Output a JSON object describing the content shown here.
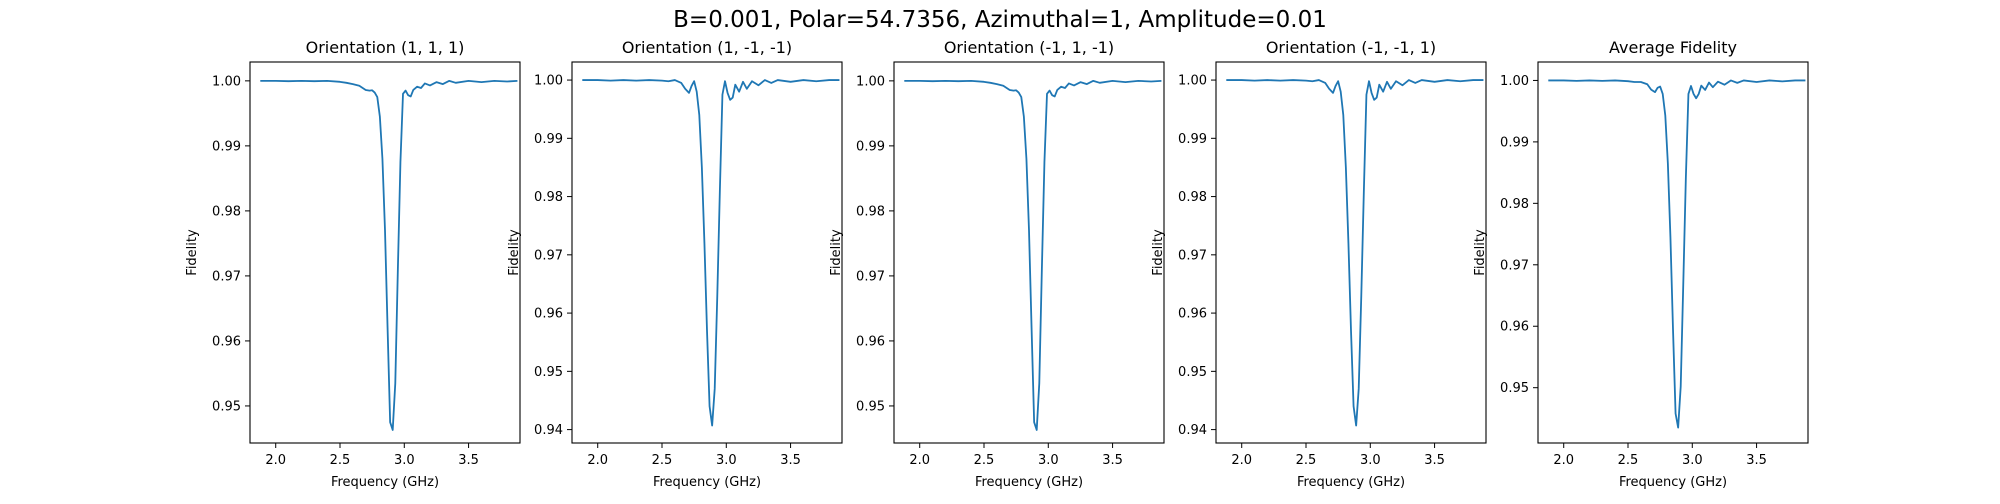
{
  "figure_title": "B=0.001, Polar=54.7356, Azimuthal=1, Amplitude=0.01",
  "line_color": "#1f77b4",
  "chart_data": [
    {
      "type": "line",
      "title": "Orientation (1, 1, 1)",
      "xlabel": "Frequency (GHz)",
      "ylabel": "Fidelity",
      "xlim": [
        1.8,
        3.9
      ],
      "ylim": [
        0.9443,
        1.0029
      ],
      "xticks": [
        2.0,
        2.5,
        3.0,
        3.5
      ],
      "xtick_labels": [
        "2.0",
        "2.5",
        "3.0",
        "3.5"
      ],
      "yticks": [
        0.95,
        0.96,
        0.97,
        0.98,
        0.99,
        1.0
      ],
      "ytick_labels": [
        "0.95",
        "0.96",
        "0.97",
        "0.98",
        "0.99",
        "1.00"
      ],
      "grid": false,
      "x": [
        1.88,
        2.0,
        2.1,
        2.2,
        2.3,
        2.4,
        2.5,
        2.55,
        2.6,
        2.65,
        2.7,
        2.73,
        2.75,
        2.77,
        2.79,
        2.81,
        2.83,
        2.85,
        2.87,
        2.89,
        2.91,
        2.93,
        2.95,
        2.97,
        2.99,
        3.01,
        3.03,
        3.05,
        3.07,
        3.1,
        3.13,
        3.16,
        3.2,
        3.25,
        3.3,
        3.35,
        3.4,
        3.5,
        3.6,
        3.7,
        3.8,
        3.88
      ],
      "y": [
        1.0,
        1.0,
        0.99995,
        1.0,
        0.99995,
        1.0,
        0.99985,
        0.9997,
        0.9995,
        0.99925,
        0.9986,
        0.9985,
        0.99855,
        0.9982,
        0.9975,
        0.9945,
        0.988,
        0.977,
        0.962,
        0.9475,
        0.9463,
        0.9535,
        0.971,
        0.9875,
        0.998,
        0.9985,
        0.9978,
        0.9976,
        0.9986,
        0.9991,
        0.9989,
        0.9996,
        0.9993,
        0.9998,
        0.9995,
        1.0,
        0.9997,
        1.0,
        0.9998,
        1.0,
        0.9999,
        1.0
      ]
    },
    {
      "type": "line",
      "title": "Orientation (1, -1, -1)",
      "xlabel": "Frequency (GHz)",
      "ylabel": "Fidelity",
      "xlim": [
        1.8,
        3.9
      ],
      "ylim": [
        0.9377,
        1.0031
      ],
      "xticks": [
        2.0,
        2.5,
        3.0,
        3.5
      ],
      "xtick_labels": [
        "2.0",
        "2.5",
        "3.0",
        "3.5"
      ],
      "yticks": [
        0.94,
        0.95,
        0.96,
        0.97,
        0.98,
        0.99,
        1.0
      ],
      "ytick_labels": [
        "0.94",
        "0.95",
        "0.96",
        "0.97",
        "0.98",
        "0.99",
        "1.00"
      ],
      "grid": false,
      "x": [
        1.88,
        2.0,
        2.1,
        2.2,
        2.3,
        2.4,
        2.5,
        2.55,
        2.6,
        2.65,
        2.68,
        2.71,
        2.73,
        2.75,
        2.77,
        2.79,
        2.81,
        2.83,
        2.85,
        2.87,
        2.89,
        2.91,
        2.93,
        2.95,
        2.97,
        2.99,
        3.01,
        3.03,
        3.05,
        3.07,
        3.1,
        3.13,
        3.16,
        3.2,
        3.25,
        3.3,
        3.35,
        3.4,
        3.5,
        3.6,
        3.7,
        3.8,
        3.88
      ],
      "y": [
        1.0,
        1.0,
        0.9999,
        1.0,
        0.9999,
        1.0,
        0.9999,
        0.9998,
        1.0,
        0.9995,
        0.9985,
        0.9978,
        0.999,
        0.9998,
        0.998,
        0.994,
        0.985,
        0.972,
        0.957,
        0.944,
        0.9407,
        0.947,
        0.963,
        0.981,
        0.9975,
        0.9998,
        0.9978,
        0.9966,
        0.997,
        0.9992,
        0.998,
        0.9997,
        0.9985,
        0.9998,
        0.9991,
        1.0,
        0.9995,
        1.0,
        0.9997,
        1.0,
        0.9998,
        1.0,
        1.0
      ]
    },
    {
      "type": "line",
      "title": "Orientation (-1, 1, -1)",
      "xlabel": "Frequency (GHz)",
      "ylabel": "Fidelity",
      "xlim": [
        1.8,
        3.9
      ],
      "ylim": [
        0.9443,
        1.0029
      ],
      "xticks": [
        2.0,
        2.5,
        3.0,
        3.5
      ],
      "xtick_labels": [
        "2.0",
        "2.5",
        "3.0",
        "3.5"
      ],
      "yticks": [
        0.95,
        0.96,
        0.97,
        0.98,
        0.99,
        1.0
      ],
      "ytick_labels": [
        "0.95",
        "0.96",
        "0.97",
        "0.98",
        "0.99",
        "1.00"
      ],
      "grid": false,
      "x": [
        1.88,
        2.0,
        2.1,
        2.2,
        2.3,
        2.4,
        2.5,
        2.55,
        2.6,
        2.65,
        2.7,
        2.73,
        2.75,
        2.77,
        2.79,
        2.81,
        2.83,
        2.85,
        2.87,
        2.89,
        2.91,
        2.93,
        2.95,
        2.97,
        2.99,
        3.01,
        3.03,
        3.05,
        3.07,
        3.1,
        3.13,
        3.16,
        3.2,
        3.25,
        3.3,
        3.35,
        3.4,
        3.5,
        3.6,
        3.7,
        3.8,
        3.88
      ],
      "y": [
        1.0,
        1.0,
        0.99995,
        1.0,
        0.99995,
        1.0,
        0.99985,
        0.9997,
        0.9995,
        0.99925,
        0.9986,
        0.9985,
        0.99855,
        0.9982,
        0.9975,
        0.9945,
        0.988,
        0.977,
        0.962,
        0.9475,
        0.9463,
        0.9535,
        0.971,
        0.9875,
        0.998,
        0.9985,
        0.9978,
        0.9976,
        0.9986,
        0.9991,
        0.9989,
        0.9996,
        0.9993,
        0.9998,
        0.9995,
        1.0,
        0.9997,
        1.0,
        0.9998,
        1.0,
        0.9999,
        1.0
      ]
    },
    {
      "type": "line",
      "title": "Orientation (-1, -1, 1)",
      "xlabel": "Frequency (GHz)",
      "ylabel": "Fidelity",
      "xlim": [
        1.8,
        3.9
      ],
      "ylim": [
        0.9377,
        1.0031
      ],
      "xticks": [
        2.0,
        2.5,
        3.0,
        3.5
      ],
      "xtick_labels": [
        "2.0",
        "2.5",
        "3.0",
        "3.5"
      ],
      "yticks": [
        0.94,
        0.95,
        0.96,
        0.97,
        0.98,
        0.99,
        1.0
      ],
      "ytick_labels": [
        "0.94",
        "0.95",
        "0.96",
        "0.97",
        "0.98",
        "0.99",
        "1.00"
      ],
      "grid": false,
      "x": [
        1.88,
        2.0,
        2.1,
        2.2,
        2.3,
        2.4,
        2.5,
        2.55,
        2.6,
        2.65,
        2.68,
        2.71,
        2.73,
        2.75,
        2.77,
        2.79,
        2.81,
        2.83,
        2.85,
        2.87,
        2.89,
        2.91,
        2.93,
        2.95,
        2.97,
        2.99,
        3.01,
        3.03,
        3.05,
        3.07,
        3.1,
        3.13,
        3.16,
        3.2,
        3.25,
        3.3,
        3.35,
        3.4,
        3.5,
        3.6,
        3.7,
        3.8,
        3.88
      ],
      "y": [
        1.0,
        1.0,
        0.9999,
        1.0,
        0.9999,
        1.0,
        0.9999,
        0.9998,
        1.0,
        0.9995,
        0.9985,
        0.9978,
        0.999,
        0.9998,
        0.998,
        0.994,
        0.985,
        0.972,
        0.957,
        0.944,
        0.9407,
        0.947,
        0.963,
        0.981,
        0.9975,
        0.9998,
        0.9978,
        0.9966,
        0.997,
        0.9992,
        0.998,
        0.9997,
        0.9985,
        0.9998,
        0.9991,
        1.0,
        0.9995,
        1.0,
        0.9997,
        1.0,
        0.9998,
        1.0,
        1.0
      ]
    },
    {
      "type": "line",
      "title": "Average Fidelity",
      "xlabel": "Frequency (GHz)",
      "ylabel": "Fidelity",
      "xlim": [
        1.8,
        3.9
      ],
      "ylim": [
        0.941,
        1.003
      ],
      "xticks": [
        2.0,
        2.5,
        3.0,
        3.5
      ],
      "xtick_labels": [
        "2.0",
        "2.5",
        "3.0",
        "3.5"
      ],
      "yticks": [
        0.95,
        0.96,
        0.97,
        0.98,
        0.99,
        1.0
      ],
      "ytick_labels": [
        "0.95",
        "0.96",
        "0.97",
        "0.98",
        "0.99",
        "1.00"
      ],
      "grid": false,
      "x": [
        1.88,
        2.0,
        2.1,
        2.2,
        2.3,
        2.4,
        2.5,
        2.55,
        2.6,
        2.65,
        2.68,
        2.71,
        2.73,
        2.75,
        2.77,
        2.79,
        2.81,
        2.83,
        2.85,
        2.87,
        2.89,
        2.91,
        2.93,
        2.95,
        2.97,
        2.99,
        3.01,
        3.03,
        3.05,
        3.07,
        3.1,
        3.13,
        3.16,
        3.2,
        3.25,
        3.3,
        3.35,
        3.4,
        3.5,
        3.6,
        3.7,
        3.8,
        3.88
      ],
      "y": [
        1.0,
        1.0,
        0.99993,
        1.0,
        0.99993,
        1.0,
        0.99988,
        0.99975,
        0.99975,
        0.99938,
        0.9985,
        0.9981,
        0.9988,
        0.999,
        0.9978,
        0.9943,
        0.9865,
        0.9745,
        0.9595,
        0.9458,
        0.9435,
        0.9502,
        0.967,
        0.9842,
        0.9978,
        0.9991,
        0.9978,
        0.9971,
        0.9978,
        0.99915,
        0.99845,
        0.99965,
        0.9989,
        0.9998,
        0.9993,
        1.0,
        0.9996,
        1.0,
        0.99975,
        1.0,
        0.99985,
        1.0,
        1.0
      ]
    }
  ]
}
